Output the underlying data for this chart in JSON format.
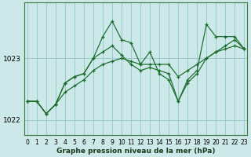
{
  "x": [
    0,
    1,
    2,
    3,
    4,
    5,
    6,
    7,
    8,
    9,
    10,
    11,
    12,
    13,
    14,
    15,
    16,
    17,
    18,
    19,
    20,
    21,
    22,
    23
  ],
  "y_zigzag": [
    1022.3,
    1022.3,
    1022.1,
    1022.25,
    1022.6,
    1022.7,
    1022.75,
    1023.0,
    1023.35,
    1023.6,
    1023.3,
    1023.25,
    1022.9,
    1023.1,
    1022.75,
    1022.65,
    1022.3,
    1022.65,
    1022.8,
    1023.55,
    1023.35,
    1023.35,
    1023.35,
    1023.15
  ],
  "y_mid": [
    1022.3,
    1022.3,
    1022.1,
    1022.25,
    1022.6,
    1022.7,
    1022.75,
    1023.0,
    1023.1,
    1023.2,
    1023.05,
    1022.9,
    1022.8,
    1022.85,
    1022.8,
    1022.75,
    1022.3,
    1022.6,
    1022.75,
    1023.0,
    1023.1,
    1023.2,
    1023.3,
    1023.15
  ],
  "y_smooth": [
    1022.3,
    1022.3,
    1022.1,
    1022.25,
    1022.45,
    1022.55,
    1022.65,
    1022.8,
    1022.9,
    1022.95,
    1023.0,
    1022.95,
    1022.9,
    1022.9,
    1022.9,
    1022.9,
    1022.7,
    1022.8,
    1022.9,
    1023.0,
    1023.1,
    1023.15,
    1023.2,
    1023.15
  ],
  "bg_color": "#cce8e8",
  "grid_color": "#99cccc",
  "line_color": "#1a6b2a",
  "ylim": [
    1021.75,
    1023.9
  ],
  "yticks": [
    1022,
    1023
  ],
  "xticks": [
    0,
    1,
    2,
    3,
    4,
    5,
    6,
    7,
    8,
    9,
    10,
    11,
    12,
    13,
    14,
    15,
    16,
    17,
    18,
    19,
    20,
    21,
    22,
    23
  ],
  "xlabel": "Graphe pression niveau de la mer (hPa)",
  "marker": "+"
}
